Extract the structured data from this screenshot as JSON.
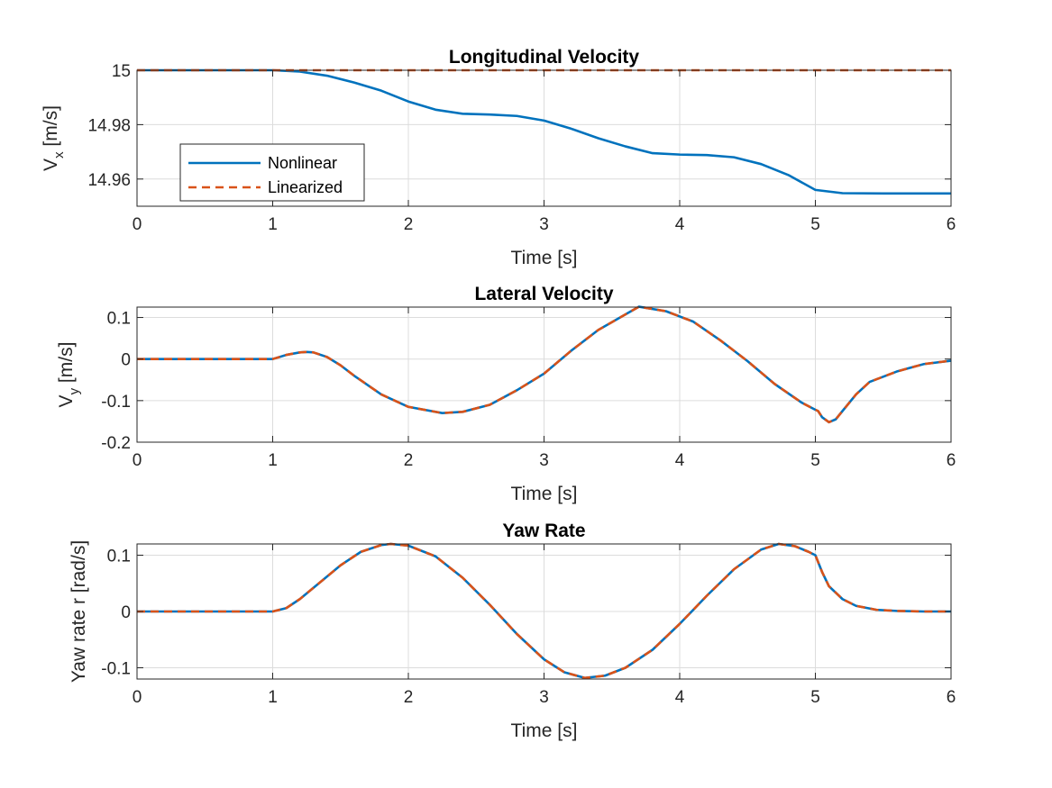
{
  "colors": {
    "nonlinear": "#0072BD",
    "linearized": "#D95319"
  },
  "legend": {
    "entries": [
      "Nonlinear",
      "Linearized"
    ],
    "location": "lower-left of first panel"
  },
  "chart_data": [
    {
      "type": "line",
      "title": "Longitudinal Velocity",
      "xlabel": "Time [s]",
      "ylabel": {
        "main": "V",
        "sub": "x",
        "unit": "[m/s]"
      },
      "xlim": [
        0,
        6
      ],
      "ylim": [
        14.95,
        15.0
      ],
      "xticks": [
        0,
        1,
        2,
        3,
        4,
        5,
        6
      ],
      "yticks": [
        14.96,
        14.98,
        15
      ],
      "ytick_labels": [
        "14.96",
        "14.98",
        "15"
      ],
      "grid": true,
      "series": [
        {
          "name": "Nonlinear",
          "style": "solid",
          "x": [
            0,
            1,
            1.2,
            1.4,
            1.6,
            1.8,
            2.0,
            2.2,
            2.4,
            2.6,
            2.8,
            3.0,
            3.2,
            3.4,
            3.6,
            3.8,
            4.0,
            4.2,
            4.4,
            4.6,
            4.8,
            5.0,
            5.2,
            5.5,
            6.0
          ],
          "y": [
            15.0,
            15.0,
            14.9995,
            14.998,
            14.9955,
            14.9925,
            14.9885,
            14.9855,
            14.984,
            14.9837,
            14.9832,
            14.9815,
            14.9785,
            14.975,
            14.972,
            14.9695,
            14.969,
            14.9688,
            14.968,
            14.9655,
            14.9615,
            14.956,
            14.9548,
            14.9547,
            14.9547
          ]
        },
        {
          "name": "Linearized",
          "style": "dashed",
          "x": [
            0,
            6
          ],
          "y": [
            15.0,
            15.0
          ]
        }
      ]
    },
    {
      "type": "line",
      "title": "Lateral Velocity",
      "xlabel": "Time [s]",
      "ylabel": {
        "main": "V",
        "sub": "y",
        "unit": "[m/s]"
      },
      "xlim": [
        0,
        6
      ],
      "ylim": [
        -0.2,
        0.125
      ],
      "xticks": [
        0,
        1,
        2,
        3,
        4,
        5,
        6
      ],
      "yticks": [
        -0.2,
        -0.1,
        0,
        0.1
      ],
      "ytick_labels": [
        "-0.2",
        "-0.1",
        "0",
        "0.1"
      ],
      "grid": true,
      "series": [
        {
          "name": "Nonlinear",
          "style": "solid",
          "x": [
            0,
            1,
            1.1,
            1.2,
            1.25,
            1.3,
            1.4,
            1.5,
            1.6,
            1.8,
            2.0,
            2.25,
            2.4,
            2.6,
            2.8,
            3.0,
            3.2,
            3.4,
            3.7,
            3.9,
            4.1,
            4.3,
            4.5,
            4.7,
            4.9,
            5.0,
            5.02,
            5.05,
            5.1,
            5.15,
            5.2,
            5.3,
            5.4,
            5.6,
            5.8,
            6.0
          ],
          "y": [
            0,
            0,
            0.01,
            0.016,
            0.017,
            0.016,
            0.005,
            -0.015,
            -0.04,
            -0.085,
            -0.115,
            -0.13,
            -0.127,
            -0.11,
            -0.075,
            -0.035,
            0.02,
            0.07,
            0.126,
            0.115,
            0.09,
            0.045,
            -0.005,
            -0.06,
            -0.105,
            -0.122,
            -0.125,
            -0.14,
            -0.152,
            -0.145,
            -0.125,
            -0.085,
            -0.055,
            -0.03,
            -0.012,
            -0.004
          ]
        },
        {
          "name": "Linearized",
          "style": "dashed",
          "x": [
            0,
            1,
            1.1,
            1.2,
            1.25,
            1.3,
            1.4,
            1.5,
            1.6,
            1.8,
            2.0,
            2.25,
            2.4,
            2.6,
            2.8,
            3.0,
            3.2,
            3.4,
            3.7,
            3.9,
            4.1,
            4.3,
            4.5,
            4.7,
            4.9,
            5.0,
            5.02,
            5.05,
            5.1,
            5.15,
            5.2,
            5.3,
            5.4,
            5.6,
            5.8,
            6.0
          ],
          "y": [
            0,
            0,
            0.01,
            0.016,
            0.017,
            0.016,
            0.005,
            -0.015,
            -0.04,
            -0.085,
            -0.115,
            -0.13,
            -0.127,
            -0.11,
            -0.075,
            -0.035,
            0.02,
            0.07,
            0.126,
            0.115,
            0.09,
            0.045,
            -0.005,
            -0.06,
            -0.105,
            -0.122,
            -0.125,
            -0.14,
            -0.152,
            -0.145,
            -0.125,
            -0.085,
            -0.055,
            -0.03,
            -0.012,
            -0.004
          ]
        }
      ]
    },
    {
      "type": "line",
      "title": "Yaw Rate",
      "xlabel": "Time [s]",
      "ylabel": {
        "main": "Yaw rate r [rad/s]",
        "sub": "",
        "unit": ""
      },
      "xlim": [
        0,
        6
      ],
      "ylim": [
        -0.12,
        0.12
      ],
      "xticks": [
        0,
        1,
        2,
        3,
        4,
        5,
        6
      ],
      "yticks": [
        -0.1,
        0,
        0.1
      ],
      "ytick_labels": [
        "-0.1",
        "0",
        "0.1"
      ],
      "grid": true,
      "series": [
        {
          "name": "Nonlinear",
          "style": "solid",
          "x": [
            0,
            1,
            1.1,
            1.2,
            1.35,
            1.5,
            1.65,
            1.8,
            1.87,
            2.0,
            2.2,
            2.4,
            2.6,
            2.8,
            3.0,
            3.15,
            3.3,
            3.45,
            3.6,
            3.8,
            4.0,
            4.2,
            4.4,
            4.6,
            4.73,
            4.85,
            4.95,
            5.0,
            5.05,
            5.1,
            5.2,
            5.3,
            5.45,
            5.6,
            5.8,
            6.0
          ],
          "y": [
            0,
            0,
            0.006,
            0.022,
            0.052,
            0.082,
            0.106,
            0.118,
            0.12,
            0.117,
            0.098,
            0.06,
            0.012,
            -0.04,
            -0.085,
            -0.108,
            -0.118,
            -0.114,
            -0.1,
            -0.068,
            -0.022,
            0.028,
            0.075,
            0.11,
            0.12,
            0.116,
            0.106,
            0.1,
            0.07,
            0.045,
            0.022,
            0.01,
            0.003,
            0.001,
            0,
            0
          ]
        },
        {
          "name": "Linearized",
          "style": "dashed",
          "x": [
            0,
            1,
            1.1,
            1.2,
            1.35,
            1.5,
            1.65,
            1.8,
            1.87,
            2.0,
            2.2,
            2.4,
            2.6,
            2.8,
            3.0,
            3.15,
            3.3,
            3.45,
            3.6,
            3.8,
            4.0,
            4.2,
            4.4,
            4.6,
            4.73,
            4.85,
            4.95,
            5.0,
            5.05,
            5.1,
            5.2,
            5.3,
            5.45,
            5.6,
            5.8,
            6.0
          ],
          "y": [
            0,
            0,
            0.006,
            0.022,
            0.052,
            0.082,
            0.106,
            0.118,
            0.12,
            0.117,
            0.098,
            0.06,
            0.012,
            -0.04,
            -0.085,
            -0.108,
            -0.118,
            -0.114,
            -0.1,
            -0.068,
            -0.022,
            0.028,
            0.075,
            0.11,
            0.12,
            0.116,
            0.106,
            0.1,
            0.07,
            0.045,
            0.022,
            0.01,
            0.003,
            0.001,
            0,
            0
          ]
        }
      ]
    }
  ]
}
